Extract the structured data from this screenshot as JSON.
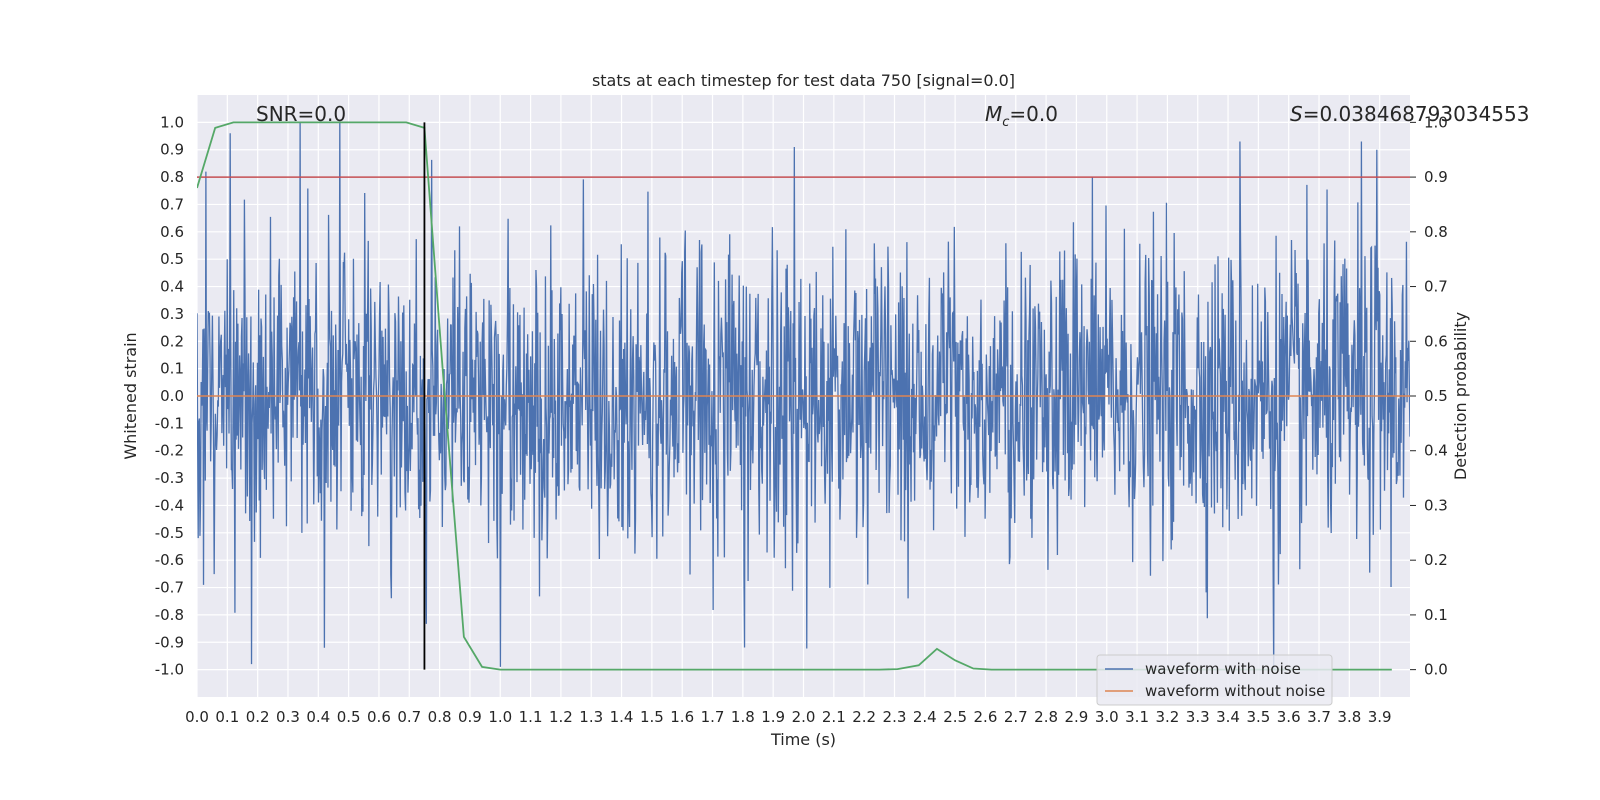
{
  "chart_data": {
    "type": "line",
    "title": "stats at each timestep for test data 750 [signal=0.0]",
    "xlabel": "Time (s)",
    "ylabel": "Whitened strain",
    "ylabel_right": "Detection probability",
    "xlim": [
      0.0,
      4.0
    ],
    "ylim": [
      -1.1,
      1.1
    ],
    "ylim_right": [
      -0.05,
      1.05
    ],
    "x_ticks": [
      "0.0",
      "0.1",
      "0.2",
      "0.3",
      "0.4",
      "0.5",
      "0.6",
      "0.7",
      "0.8",
      "0.9",
      "1.0",
      "1.1",
      "1.2",
      "1.3",
      "1.4",
      "1.5",
      "1.6",
      "1.7",
      "1.8",
      "1.9",
      "2.0",
      "2.1",
      "2.2",
      "2.3",
      "2.4",
      "2.5",
      "2.6",
      "2.7",
      "2.8",
      "2.9",
      "3.0",
      "3.1",
      "3.2",
      "3.3",
      "3.4",
      "3.5",
      "3.6",
      "3.7",
      "3.8",
      "3.9"
    ],
    "y_ticks": [
      "1.0",
      "0.9",
      "0.8",
      "0.7",
      "0.6",
      "0.5",
      "0.4",
      "0.3",
      "0.2",
      "0.1",
      "0.0",
      "-0.1",
      "-0.2",
      "-0.3",
      "-0.4",
      "-0.5",
      "-0.6",
      "-0.7",
      "-0.8",
      "-0.9",
      "-1.0"
    ],
    "y_ticks_right": [
      "1.0",
      "0.9",
      "0.8",
      "0.7",
      "0.6",
      "0.5",
      "0.4",
      "0.3",
      "0.2",
      "0.1",
      "0.0"
    ],
    "annotations": {
      "snr": "SNR=0.0",
      "mc_symbol": "M",
      "mc_sub": "c",
      "mc_value": "=0.0",
      "s_symbol": "S",
      "s_value": "=0.038468793034553"
    },
    "threshold": {
      "value": 0.9,
      "axis": "right",
      "color": "#c44e52"
    },
    "marker_time": 0.75,
    "legend": {
      "placement": "bottom-right",
      "entries": [
        {
          "label": "waveform with noise",
          "color": "#4c72b0"
        },
        {
          "label": "waveform without noise",
          "color": "#dd8452"
        }
      ]
    },
    "series": [
      {
        "name": "waveform with noise",
        "color": "#4c72b0",
        "samples": 2048,
        "approx_amplitude_range": [
          -1.0,
          1.0
        ],
        "description_values": "dense noise trace, sample peaks",
        "peaks": [
          [
            0.03,
            0.82
          ],
          [
            0.11,
            0.96
          ],
          [
            0.18,
            -0.98
          ],
          [
            0.34,
            1.0
          ],
          [
            0.42,
            -0.92
          ],
          [
            0.47,
            1.0
          ],
          [
            1.0,
            -0.99
          ],
          [
            1.97,
            0.91
          ],
          [
            3.44,
            0.93
          ],
          [
            3.55,
            -1.0
          ],
          [
            3.84,
            0.93
          ],
          [
            3.89,
            0.9
          ]
        ]
      },
      {
        "name": "waveform without noise",
        "color": "#dd8452",
        "x": [
          0.0,
          4.0
        ],
        "values": [
          0.0,
          0.0
        ]
      },
      {
        "name": "detection probability",
        "color": "#55a868",
        "axis": "right",
        "x": [
          0.0,
          0.06,
          0.12,
          0.19,
          0.25,
          0.31,
          0.38,
          0.44,
          0.5,
          0.56,
          0.62,
          0.69,
          0.75,
          0.81,
          0.88,
          0.94,
          1.0,
          1.06,
          1.12,
          1.19,
          1.25,
          1.31,
          1.38,
          1.44,
          1.5,
          1.56,
          1.62,
          1.69,
          1.75,
          1.81,
          1.88,
          1.94,
          2.0,
          2.06,
          2.12,
          2.19,
          2.25,
          2.31,
          2.38,
          2.44,
          2.5,
          2.56,
          2.62,
          2.69,
          2.75,
          2.81,
          2.88,
          2.94,
          3.0,
          3.06,
          3.12,
          3.19,
          3.25,
          3.31,
          3.38,
          3.44,
          3.5,
          3.56,
          3.62,
          3.69,
          3.75,
          3.81,
          3.88,
          3.94
        ],
        "values": [
          0.88,
          0.99,
          1.0,
          1.0,
          1.0,
          1.0,
          1.0,
          1.0,
          1.0,
          1.0,
          1.0,
          1.0,
          0.99,
          0.55,
          0.06,
          0.005,
          0.0,
          0.0,
          0.0,
          0.0,
          0.0,
          0.0,
          0.0,
          0.0,
          0.0,
          0.0,
          0.0,
          0.0,
          0.0,
          0.0,
          0.0,
          0.0,
          0.0,
          0.0,
          0.0,
          0.0,
          0.0,
          0.001,
          0.008,
          0.038,
          0.017,
          0.002,
          0.0,
          0.0,
          0.0,
          0.0,
          0.0,
          0.0,
          0.0,
          0.0,
          0.0,
          0.0,
          0.0,
          0.0,
          0.0,
          0.0,
          0.0,
          0.0,
          0.0,
          0.0,
          0.0,
          0.0,
          0.0,
          0.0
        ]
      }
    ]
  }
}
